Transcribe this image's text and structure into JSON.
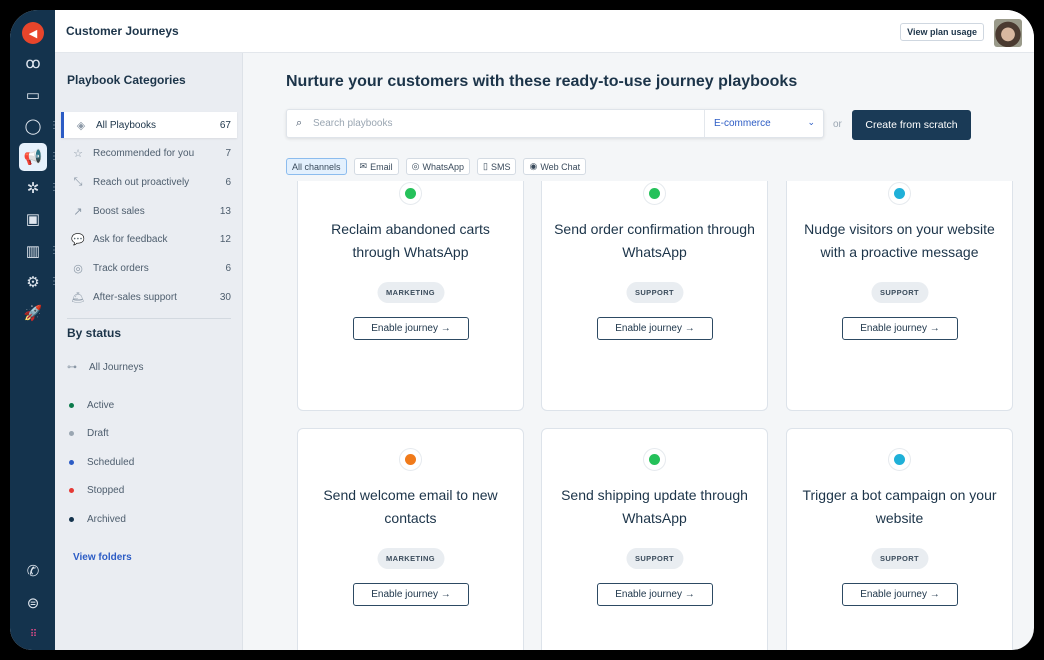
{
  "header": {
    "title": "Customer Journeys",
    "plan_button": "View plan usage"
  },
  "rail": {
    "items": [
      "megaphone-logo",
      "contacts",
      "inbox",
      "user",
      "journeys",
      "targeting",
      "desktop",
      "reports",
      "settings",
      "rocket"
    ],
    "bottom": [
      "phone",
      "chat",
      "apps"
    ]
  },
  "sidebar": {
    "categories_title": "Playbook Categories",
    "categories": [
      {
        "label": "All Playbooks",
        "count": "67",
        "icon": "layers"
      },
      {
        "label": "Recommended for you",
        "count": "7",
        "icon": "star"
      },
      {
        "label": "Reach out proactively",
        "count": "6",
        "icon": "cursor-click"
      },
      {
        "label": "Boost sales",
        "count": "13",
        "icon": "trend-up"
      },
      {
        "label": "Ask for feedback",
        "count": "12",
        "icon": "speech"
      },
      {
        "label": "Track orders",
        "count": "6",
        "icon": "target"
      },
      {
        "label": "After-sales support",
        "count": "30",
        "icon": "bell"
      }
    ],
    "status_title": "By status",
    "all_journeys": "All Journeys",
    "statuses": [
      {
        "label": "Active",
        "color": "#0b7a4b"
      },
      {
        "label": "Draft",
        "color": "#9aa6b2"
      },
      {
        "label": "Scheduled",
        "color": "#2c5cc5"
      },
      {
        "label": "Stopped",
        "color": "#e53935"
      },
      {
        "label": "Archived",
        "color": "#14334d"
      }
    ],
    "view_folders": "View folders"
  },
  "main": {
    "heading": "Nurture your customers with these ready-to-use journey playbooks",
    "search_placeholder": "Search playbooks",
    "industry": "E-commerce",
    "or": "or",
    "create": "Create from scratch",
    "channels": [
      {
        "label": "All channels",
        "active": true
      },
      {
        "label": "Email",
        "icon": "✉"
      },
      {
        "label": "WhatsApp",
        "icon": "◎"
      },
      {
        "label": "SMS",
        "icon": "▯"
      },
      {
        "label": "Web Chat",
        "icon": "◉"
      }
    ],
    "cards": [
      {
        "title": "Reclaim abandoned carts through WhatsApp",
        "tag": "MARKETING",
        "channel": "whatsapp",
        "button": "Enable journey →"
      },
      {
        "title": "Send order confirmation through WhatsApp",
        "tag": "SUPPORT",
        "channel": "whatsapp",
        "button": "Enable journey →"
      },
      {
        "title": "Nudge visitors on your website with a proactive message",
        "tag": "SUPPORT",
        "channel": "webchat",
        "button": "Enable journey →"
      },
      {
        "title": "Send welcome email to new contacts",
        "tag": "MARKETING",
        "channel": "email",
        "button": "Enable journey →"
      },
      {
        "title": "Send shipping update through WhatsApp",
        "tag": "SUPPORT",
        "channel": "whatsapp",
        "button": "Enable journey →"
      },
      {
        "title": "Trigger a bot campaign on your website",
        "tag": "SUPPORT",
        "channel": "webchat",
        "button": "Enable journey →"
      }
    ]
  },
  "colors": {
    "rail": "#14334d",
    "accent": "#2c5cc5",
    "whatsapp": "#25c15a",
    "webchat": "#1fb0d8",
    "email": "#f07a1a"
  }
}
